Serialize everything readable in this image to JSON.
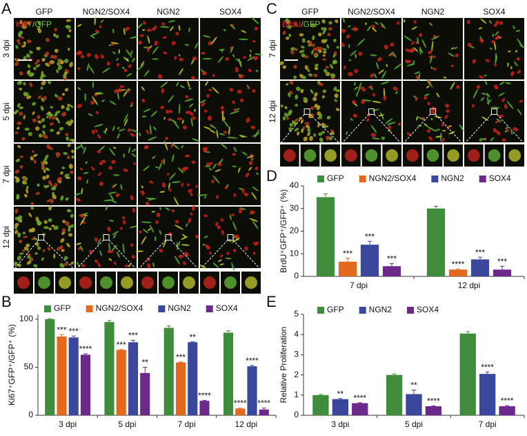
{
  "panel_a": {
    "label": "A",
    "stain": [
      "Ki67",
      "/GFP"
    ],
    "columns": [
      "GFP",
      "NGN2/SOX4",
      "NGN2",
      "SOX4"
    ],
    "rows": [
      "3 dpi",
      "5 dpi",
      "7 dpi",
      "12 dpi"
    ]
  },
  "panel_c": {
    "label": "C",
    "stain": [
      "BrdU",
      "/GFP"
    ],
    "columns": [
      "GFP",
      "NGN2/SOX4",
      "NGN2",
      "SOX4"
    ],
    "rows": [
      "7 dpi",
      "12 dpi"
    ]
  },
  "chart_data": [
    {
      "type": "bar",
      "label": "B",
      "y_label": "Ki67⁺GFP⁺/GFP⁺ (%)",
      "categories": [
        "3 dpi",
        "5 dpi",
        "7 dpi",
        "12 dpi"
      ],
      "ylim": [
        0,
        105
      ],
      "yticks": [
        0,
        50,
        100
      ],
      "series": [
        {
          "name": "GFP",
          "color": "#3f8c3c",
          "values": [
            100,
            97,
            91,
            86
          ],
          "errors": [
            0.5,
            1.5,
            2,
            2
          ],
          "significance": [
            null,
            null,
            null,
            null
          ]
        },
        {
          "name": "NGN2/SOX4",
          "color": "#e2691d",
          "values": [
            82,
            68,
            55,
            7
          ],
          "errors": [
            2,
            0.5,
            0.5,
            0.5
          ],
          "significance": [
            "***",
            "***",
            "***",
            "****"
          ]
        },
        {
          "name": "NGN2",
          "color": "#3b479d",
          "values": [
            81,
            76,
            76,
            51
          ],
          "errors": [
            1.5,
            2,
            0.5,
            1
          ],
          "significance": [
            "***",
            "***",
            "**",
            "****"
          ]
        },
        {
          "name": "SOX4",
          "color": "#6b2a8b",
          "values": [
            63,
            44,
            15,
            6
          ],
          "errors": [
            1,
            6,
            0.5,
            1.5
          ],
          "significance": [
            "****",
            "**",
            "****",
            "****"
          ]
        }
      ]
    },
    {
      "type": "bar",
      "label": "D",
      "y_label": "BrdU⁺GFP⁺/GFP⁺ (%)",
      "categories": [
        "7 dpi",
        "12 dpi"
      ],
      "ylim": [
        0,
        40
      ],
      "yticks": [
        0,
        10,
        20,
        30,
        40
      ],
      "series": [
        {
          "name": "GFP",
          "color": "#3f8c3c",
          "values": [
            35,
            30
          ],
          "errors": [
            1.5,
            1
          ],
          "significance": [
            null,
            null
          ]
        },
        {
          "name": "NGN2/SOX4",
          "color": "#e2691d",
          "values": [
            6.5,
            3
          ],
          "errors": [
            1.5,
            0.3
          ],
          "significance": [
            "***",
            "****"
          ]
        },
        {
          "name": "NGN2",
          "color": "#3b479d",
          "values": [
            14,
            7.5
          ],
          "errors": [
            1.5,
            1
          ],
          "significance": [
            "***",
            "***"
          ]
        },
        {
          "name": "SOX4",
          "color": "#6b2a8b",
          "values": [
            4.5,
            3
          ],
          "errors": [
            1.2,
            1.5
          ],
          "significance": [
            "***",
            "***"
          ]
        }
      ]
    },
    {
      "type": "bar",
      "label": "E",
      "y_label": "Relative Proliferation",
      "categories": [
        "3 dpi",
        "5 dpi",
        "7 dpi"
      ],
      "ylim": [
        0,
        5
      ],
      "yticks": [
        0,
        1,
        2,
        3,
        4,
        5
      ],
      "series": [
        {
          "name": "GFP",
          "color": "#3f8c3c",
          "values": [
            1,
            2,
            4.05
          ],
          "errors": [
            0.03,
            0.05,
            0.1
          ],
          "significance": [
            null,
            null,
            null
          ]
        },
        {
          "name": "NGN2",
          "color": "#3b479d",
          "values": [
            0.8,
            1.05,
            2.05
          ],
          "errors": [
            0.03,
            0.2,
            0.1
          ],
          "significance": [
            "**",
            "**",
            "****"
          ]
        },
        {
          "name": "SOX4",
          "color": "#6b2a8b",
          "values": [
            0.6,
            0.45,
            0.45
          ],
          "errors": [
            0.02,
            0.02,
            0.03
          ],
          "significance": [
            "****",
            "****",
            "****"
          ]
        }
      ]
    }
  ]
}
